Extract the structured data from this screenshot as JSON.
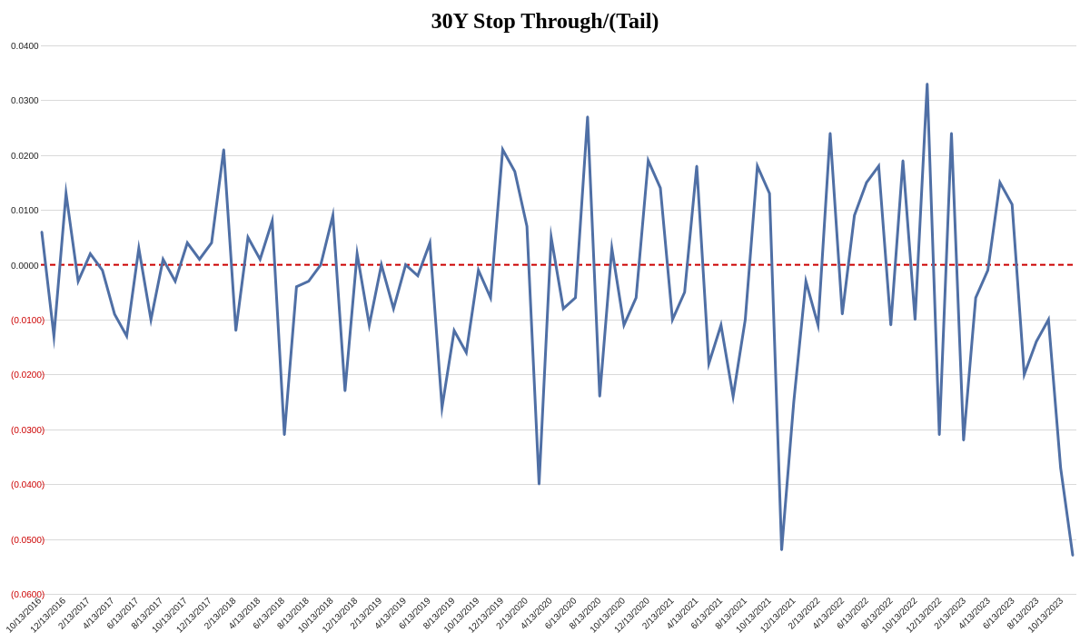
{
  "chart_data": {
    "type": "line",
    "title": "30Y Stop Through/(Tail)",
    "xlabel": "",
    "ylabel": "",
    "ylim": [
      -0.06,
      0.04
    ],
    "y_ticks": [
      0.04,
      0.03,
      0.02,
      0.01,
      0.0,
      -0.01,
      -0.02,
      -0.03,
      -0.04,
      -0.05,
      -0.06
    ],
    "y_tick_labels": [
      "0.0400",
      "0.0300",
      "0.0200",
      "0.0100",
      "0.0000",
      "(0.0100)",
      "(0.0200)",
      "(0.0300)",
      "(0.0400)",
      "(0.0500)",
      "(0.0600)"
    ],
    "x_tick_labels": [
      "10/13/2016",
      "12/13/2016",
      "2/13/2017",
      "4/13/2017",
      "6/13/2017",
      "8/13/2017",
      "10/13/2017",
      "12/13/2017",
      "2/13/2018",
      "4/13/2018",
      "6/13/2018",
      "8/13/2018",
      "10/13/2018",
      "12/13/2018",
      "2/13/2019",
      "4/13/2019",
      "6/13/2019",
      "8/13/2019",
      "10/13/2019",
      "12/13/2019",
      "2/13/2020",
      "4/13/2020",
      "6/13/2020",
      "8/13/2020",
      "10/13/2020",
      "12/13/2020",
      "2/13/2021",
      "4/13/2021",
      "6/13/2021",
      "8/13/2021",
      "10/13/2021",
      "12/13/2021",
      "2/13/2022",
      "4/13/2022",
      "6/13/2022",
      "8/13/2022",
      "10/13/2022",
      "12/13/2022",
      "2/13/2023",
      "4/13/2023",
      "6/13/2023",
      "8/13/2023",
      "10/13/2023"
    ],
    "grid": true,
    "legend": "none",
    "series": [
      {
        "color": "#4f6fa5",
        "values": [
          0.006,
          -0.013,
          0.013,
          -0.003,
          0.002,
          -0.001,
          -0.009,
          -0.013,
          0.003,
          -0.01,
          0.001,
          -0.003,
          0.004,
          0.001,
          0.004,
          0.021,
          -0.012,
          0.005,
          0.001,
          0.008,
          -0.031,
          -0.004,
          -0.003,
          0.0,
          0.009,
          -0.023,
          0.002,
          -0.011,
          0.0,
          -0.008,
          0.0,
          -0.002,
          0.004,
          -0.026,
          -0.012,
          -0.016,
          -0.001,
          -0.006,
          0.021,
          0.017,
          0.007,
          -0.04,
          0.005,
          -0.008,
          -0.006,
          0.027,
          -0.024,
          0.003,
          -0.011,
          -0.006,
          0.019,
          0.014,
          -0.01,
          -0.005,
          0.018,
          -0.018,
          -0.011,
          -0.024,
          -0.01,
          0.018,
          0.013,
          -0.052,
          -0.025,
          -0.003,
          -0.011,
          0.024,
          -0.009,
          0.009,
          0.015,
          0.018,
          -0.011,
          0.019,
          -0.01,
          0.033,
          -0.031,
          0.024,
          -0.032,
          -0.006,
          -0.001,
          0.015,
          0.011,
          -0.02,
          -0.014,
          -0.01,
          -0.037,
          -0.053
        ]
      }
    ],
    "reference_line": {
      "value": 0.0,
      "color": "#cc0000",
      "style": "dashed"
    },
    "negative_label_color": "#cc0000",
    "positive_label_color": "#222222"
  }
}
